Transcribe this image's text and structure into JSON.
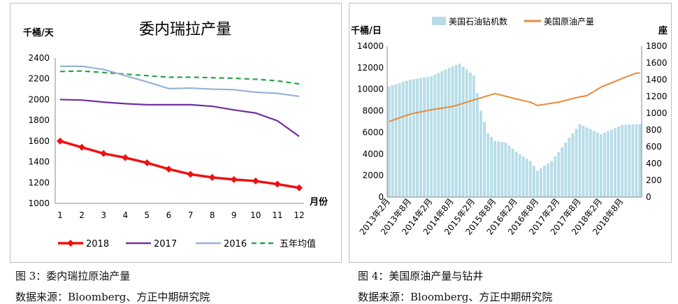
{
  "captions": {
    "left_figure": "图 3：委内瑞拉原油产量",
    "left_source": "数据来源：Bloomberg、方正中期研究院",
    "right_figure": "图 4：美国原油产量与钻井",
    "right_source": "数据来源：Bloomberg、方正中期研究院"
  },
  "chart_data": [
    {
      "type": "line",
      "title": "委内瑞拉产量",
      "ylabel": "千桶/天",
      "xlabel": "月份",
      "x": [
        1,
        2,
        3,
        4,
        5,
        6,
        7,
        8,
        9,
        10,
        11,
        12
      ],
      "ylim": [
        1000,
        2400
      ],
      "yticks": [
        1000,
        1200,
        1400,
        1600,
        1800,
        2000,
        2200,
        2400
      ],
      "grid": false,
      "legend": "bottom",
      "series": [
        {
          "name": "2018",
          "color": "#ee1111",
          "style": "solid-diamond",
          "values": [
            1600,
            1540,
            1480,
            1440,
            1390,
            1330,
            1280,
            1250,
            1230,
            1215,
            1185,
            1150
          ]
        },
        {
          "name": "2017",
          "color": "#7030a0",
          "style": "solid",
          "values": [
            2000,
            1995,
            1975,
            1960,
            1950,
            1950,
            1950,
            1935,
            1900,
            1870,
            1795,
            1645
          ]
        },
        {
          "name": "2016",
          "color": "#95b3d7",
          "style": "solid",
          "values": [
            2320,
            2320,
            2290,
            2230,
            2170,
            2105,
            2110,
            2100,
            2095,
            2070,
            2060,
            2030
          ]
        },
        {
          "name": "五年均值",
          "color": "#2ca04c",
          "style": "dashed",
          "values": [
            2270,
            2275,
            2260,
            2245,
            2230,
            2215,
            2215,
            2210,
            2205,
            2195,
            2180,
            2150
          ]
        }
      ]
    },
    {
      "type": "bar+line",
      "title": "",
      "ylabel_left": "千桶/日",
      "ylabel_right": "座",
      "ylim_left": [
        0,
        14000
      ],
      "ylim_right": [
        0,
        1800
      ],
      "yticks_left": [
        0,
        2000,
        4000,
        6000,
        8000,
        10000,
        12000,
        14000
      ],
      "yticks_right": [
        0,
        200,
        400,
        600,
        800,
        1000,
        1200,
        1400,
        1600,
        1800
      ],
      "x_tick_labels": [
        "2013年2月",
        "2013年8月",
        "2014年2月",
        "2014年8月",
        "2015年2月",
        "2015年8月",
        "2016年2月",
        "2016年8月",
        "2017年2月",
        "2017年8月",
        "2018年2月",
        "2018年8月"
      ],
      "legend": "top",
      "series": [
        {
          "name": "美国石油钻机数",
          "kind": "bar",
          "axis": "right",
          "color": "#b7dde8",
          "anchor_months": [
            0,
            6,
            12,
            18,
            20,
            24,
            26,
            28,
            30,
            33,
            36,
            40,
            42,
            46,
            48,
            52,
            54,
            60,
            66,
            70
          ],
          "values": [
            1320,
            1400,
            1440,
            1560,
            1590,
            1450,
            1030,
            760,
            670,
            650,
            540,
            430,
            316,
            430,
            540,
            760,
            870,
            750,
            860,
            870
          ]
        },
        {
          "name": "美国原油产量",
          "kind": "line",
          "axis": "left",
          "color": "#e8893a",
          "anchor_months": [
            0,
            6,
            12,
            18,
            24,
            30,
            36,
            40,
            42,
            48,
            54,
            56,
            58,
            60,
            66,
            70
          ],
          "values": [
            7000,
            7700,
            8100,
            8400,
            9000,
            9600,
            9100,
            8800,
            8500,
            8800,
            9300,
            9400,
            9800,
            10200,
            11000,
            11500
          ]
        }
      ]
    }
  ]
}
